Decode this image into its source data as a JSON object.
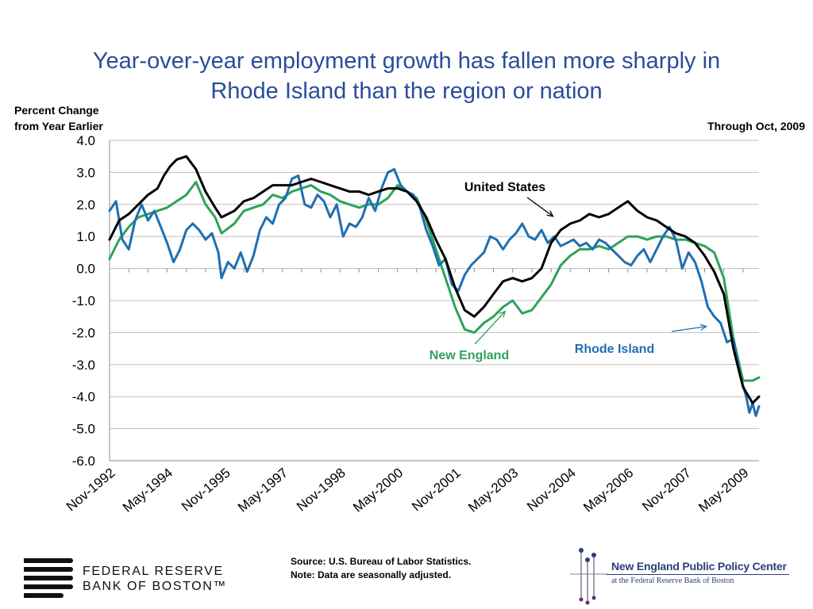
{
  "title": {
    "line1": "Year-over-year employment growth has fallen more sharply in",
    "line2": "Rhode Island than the region or nation"
  },
  "ylabel": {
    "line1": "Percent Change",
    "line2": "from Year Earlier"
  },
  "through_label": "Through Oct, 2009",
  "source": {
    "line1": "Source: U.S. Bureau of Labor Statistics.",
    "line2": "Note: Data are seasonally adjusted."
  },
  "logos": {
    "frb_line1": "FEDERAL RESERVE",
    "frb_line2": "BANK OF BOSTON™",
    "nepc_line1": "New England Public Policy Center",
    "nepc_line2": "at the Federal Reserve Bank of Boston"
  },
  "colors": {
    "title": "#2a4d9b",
    "united_states": "#000000",
    "new_england": "#2ea358",
    "rhode_island": "#1f6fb2",
    "grid": "#bfbfbf"
  },
  "chart_data": {
    "type": "line",
    "x_start": "Nov-1992",
    "x_end": "Oct-2009",
    "x_tick_labels": [
      "Nov-1992",
      "May-1994",
      "Nov-1995",
      "May-1997",
      "Nov-1998",
      "May-2000",
      "Nov-2001",
      "May-2003",
      "Nov-2004",
      "May-2006",
      "Nov-2007",
      "May-2009"
    ],
    "y_tick_labels": [
      "4.0",
      "3.0",
      "2.0",
      "1.0",
      "0.0",
      "-1.0",
      "-2.0",
      "-3.0",
      "-4.0",
      "-5.0",
      "-6.0"
    ],
    "ylim": [
      -6,
      4
    ],
    "grid": true,
    "series": [
      {
        "name": "United States",
        "color": "#000000",
        "points": [
          [
            "Nov-1992",
            0.9
          ],
          [
            "Feb-1993",
            1.5
          ],
          [
            "May-1993",
            1.7
          ],
          [
            "Aug-1993",
            2.0
          ],
          [
            "Nov-1993",
            2.3
          ],
          [
            "Feb-1994",
            2.5
          ],
          [
            "Apr-1994",
            2.9
          ],
          [
            "Jun-1994",
            3.2
          ],
          [
            "Aug-1994",
            3.4
          ],
          [
            "Nov-1994",
            3.5
          ],
          [
            "Feb-1995",
            3.1
          ],
          [
            "May-1995",
            2.4
          ],
          [
            "Aug-1995",
            1.9
          ],
          [
            "Oct-1995",
            1.6
          ],
          [
            "Feb-1996",
            1.8
          ],
          [
            "May-1996",
            2.1
          ],
          [
            "Aug-1996",
            2.2
          ],
          [
            "Nov-1996",
            2.4
          ],
          [
            "Feb-1997",
            2.6
          ],
          [
            "May-1997",
            2.6
          ],
          [
            "Aug-1997",
            2.6
          ],
          [
            "Nov-1997",
            2.7
          ],
          [
            "Feb-1998",
            2.8
          ],
          [
            "May-1998",
            2.7
          ],
          [
            "Aug-1998",
            2.6
          ],
          [
            "Nov-1998",
            2.5
          ],
          [
            "Feb-1999",
            2.4
          ],
          [
            "May-1999",
            2.4
          ],
          [
            "Aug-1999",
            2.3
          ],
          [
            "Nov-1999",
            2.4
          ],
          [
            "Feb-2000",
            2.5
          ],
          [
            "May-2000",
            2.5
          ],
          [
            "Aug-2000",
            2.4
          ],
          [
            "Nov-2000",
            2.1
          ],
          [
            "Feb-2001",
            1.6
          ],
          [
            "May-2001",
            0.9
          ],
          [
            "Aug-2001",
            0.3
          ],
          [
            "Nov-2001",
            -0.6
          ],
          [
            "Feb-2002",
            -1.3
          ],
          [
            "May-2002",
            -1.5
          ],
          [
            "Aug-2002",
            -1.2
          ],
          [
            "Nov-2002",
            -0.8
          ],
          [
            "Feb-2003",
            -0.4
          ],
          [
            "May-2003",
            -0.3
          ],
          [
            "Aug-2003",
            -0.4
          ],
          [
            "Nov-2003",
            -0.3
          ],
          [
            "Feb-2004",
            0.0
          ],
          [
            "May-2004",
            0.8
          ],
          [
            "Aug-2004",
            1.2
          ],
          [
            "Nov-2004",
            1.4
          ],
          [
            "Feb-2005",
            1.5
          ],
          [
            "May-2005",
            1.7
          ],
          [
            "Aug-2005",
            1.6
          ],
          [
            "Nov-2005",
            1.7
          ],
          [
            "Feb-2006",
            1.9
          ],
          [
            "May-2006",
            2.1
          ],
          [
            "Aug-2006",
            1.8
          ],
          [
            "Nov-2006",
            1.6
          ],
          [
            "Feb-2007",
            1.5
          ],
          [
            "May-2007",
            1.3
          ],
          [
            "Aug-2007",
            1.1
          ],
          [
            "Nov-2007",
            1.0
          ],
          [
            "Feb-2008",
            0.8
          ],
          [
            "May-2008",
            0.4
          ],
          [
            "Aug-2008",
            -0.1
          ],
          [
            "Nov-2008",
            -0.8
          ],
          [
            "Feb-2009",
            -2.5
          ],
          [
            "May-2009",
            -3.7
          ],
          [
            "Aug-2009",
            -4.2
          ],
          [
            "Oct-2009",
            -4.0
          ]
        ]
      },
      {
        "name": "New England",
        "color": "#2ea358",
        "points": [
          [
            "Nov-1992",
            0.3
          ],
          [
            "Feb-1993",
            0.9
          ],
          [
            "May-1993",
            1.3
          ],
          [
            "Aug-1993",
            1.6
          ],
          [
            "Nov-1993",
            1.7
          ],
          [
            "Feb-1994",
            1.8
          ],
          [
            "May-1994",
            1.9
          ],
          [
            "Aug-1994",
            2.1
          ],
          [
            "Nov-1994",
            2.3
          ],
          [
            "Feb-1995",
            2.7
          ],
          [
            "May-1995",
            2.0
          ],
          [
            "Aug-1995",
            1.6
          ],
          [
            "Oct-1995",
            1.1
          ],
          [
            "Feb-1996",
            1.4
          ],
          [
            "May-1996",
            1.8
          ],
          [
            "Aug-1996",
            1.9
          ],
          [
            "Nov-1996",
            2.0
          ],
          [
            "Feb-1997",
            2.3
          ],
          [
            "May-1997",
            2.2
          ],
          [
            "Aug-1997",
            2.4
          ],
          [
            "Nov-1997",
            2.5
          ],
          [
            "Feb-1998",
            2.6
          ],
          [
            "May-1998",
            2.4
          ],
          [
            "Aug-1998",
            2.3
          ],
          [
            "Nov-1998",
            2.1
          ],
          [
            "Feb-1999",
            2.0
          ],
          [
            "May-1999",
            1.9
          ],
          [
            "Aug-1999",
            2.0
          ],
          [
            "Nov-1999",
            2.0
          ],
          [
            "Feb-2000",
            2.2
          ],
          [
            "May-2000",
            2.6
          ],
          [
            "Aug-2000",
            2.4
          ],
          [
            "Nov-2000",
            2.2
          ],
          [
            "Feb-2001",
            1.5
          ],
          [
            "May-2001",
            0.6
          ],
          [
            "Aug-2001",
            -0.3
          ],
          [
            "Nov-2001",
            -1.2
          ],
          [
            "Feb-2002",
            -1.9
          ],
          [
            "May-2002",
            -2.0
          ],
          [
            "Aug-2002",
            -1.7
          ],
          [
            "Nov-2002",
            -1.5
          ],
          [
            "Feb-2003",
            -1.2
          ],
          [
            "May-2003",
            -1.0
          ],
          [
            "Aug-2003",
            -1.4
          ],
          [
            "Nov-2003",
            -1.3
          ],
          [
            "Feb-2004",
            -0.9
          ],
          [
            "May-2004",
            -0.5
          ],
          [
            "Aug-2004",
            0.1
          ],
          [
            "Nov-2004",
            0.4
          ],
          [
            "Feb-2005",
            0.6
          ],
          [
            "May-2005",
            0.6
          ],
          [
            "Aug-2005",
            0.7
          ],
          [
            "Nov-2005",
            0.6
          ],
          [
            "Feb-2006",
            0.8
          ],
          [
            "May-2006",
            1.0
          ],
          [
            "Aug-2006",
            1.0
          ],
          [
            "Nov-2006",
            0.9
          ],
          [
            "Feb-2007",
            1.0
          ],
          [
            "May-2007",
            1.0
          ],
          [
            "Aug-2007",
            0.9
          ],
          [
            "Nov-2007",
            0.9
          ],
          [
            "Feb-2008",
            0.8
          ],
          [
            "May-2008",
            0.7
          ],
          [
            "Aug-2008",
            0.5
          ],
          [
            "Nov-2008",
            -0.3
          ],
          [
            "Feb-2009",
            -2.2
          ],
          [
            "May-2009",
            -3.5
          ],
          [
            "Aug-2009",
            -3.5
          ],
          [
            "Oct-2009",
            -3.4
          ]
        ]
      },
      {
        "name": "Rhode Island",
        "color": "#1f6fb2",
        "points": [
          [
            "Nov-1992",
            1.8
          ],
          [
            "Jan-1993",
            2.1
          ],
          [
            "Mar-1993",
            0.9
          ],
          [
            "May-1993",
            0.6
          ],
          [
            "Jul-1993",
            1.5
          ],
          [
            "Sep-1993",
            2.0
          ],
          [
            "Nov-1993",
            1.5
          ],
          [
            "Jan-1994",
            1.8
          ],
          [
            "Mar-1994",
            1.3
          ],
          [
            "May-1994",
            0.8
          ],
          [
            "Jul-1994",
            0.2
          ],
          [
            "Sep-1994",
            0.6
          ],
          [
            "Nov-1994",
            1.2
          ],
          [
            "Jan-1995",
            1.4
          ],
          [
            "Mar-1995",
            1.2
          ],
          [
            "May-1995",
            0.9
          ],
          [
            "Jul-1995",
            1.1
          ],
          [
            "Sep-1995",
            0.5
          ],
          [
            "Oct-1995",
            -0.3
          ],
          [
            "Dec-1995",
            0.2
          ],
          [
            "Feb-1996",
            0.0
          ],
          [
            "Apr-1996",
            0.5
          ],
          [
            "Jun-1996",
            -0.1
          ],
          [
            "Aug-1996",
            0.4
          ],
          [
            "Oct-1996",
            1.2
          ],
          [
            "Dec-1996",
            1.6
          ],
          [
            "Feb-1997",
            1.4
          ],
          [
            "Apr-1997",
            2.0
          ],
          [
            "Jun-1997",
            2.2
          ],
          [
            "Aug-1997",
            2.8
          ],
          [
            "Oct-1997",
            2.9
          ],
          [
            "Dec-1997",
            2.0
          ],
          [
            "Feb-1998",
            1.9
          ],
          [
            "Apr-1998",
            2.3
          ],
          [
            "Jun-1998",
            2.1
          ],
          [
            "Aug-1998",
            1.6
          ],
          [
            "Oct-1998",
            2.0
          ],
          [
            "Dec-1998",
            1.0
          ],
          [
            "Feb-1999",
            1.4
          ],
          [
            "Apr-1999",
            1.3
          ],
          [
            "Jun-1999",
            1.6
          ],
          [
            "Aug-1999",
            2.2
          ],
          [
            "Oct-1999",
            1.8
          ],
          [
            "Dec-1999",
            2.5
          ],
          [
            "Feb-2000",
            3.0
          ],
          [
            "Apr-2000",
            3.1
          ],
          [
            "Jun-2000",
            2.6
          ],
          [
            "Aug-2000",
            2.4
          ],
          [
            "Oct-2000",
            2.3
          ],
          [
            "Dec-2000",
            1.9
          ],
          [
            "Feb-2001",
            1.2
          ],
          [
            "Apr-2001",
            0.7
          ],
          [
            "Jun-2001",
            0.1
          ],
          [
            "Aug-2001",
            0.3
          ],
          [
            "Oct-2001",
            -0.5
          ],
          [
            "Dec-2001",
            -0.7
          ],
          [
            "Feb-2002",
            -0.2
          ],
          [
            "Apr-2002",
            0.1
          ],
          [
            "Jun-2002",
            0.3
          ],
          [
            "Aug-2002",
            0.5
          ],
          [
            "Oct-2002",
            1.0
          ],
          [
            "Dec-2002",
            0.9
          ],
          [
            "Feb-2003",
            0.6
          ],
          [
            "Apr-2003",
            0.9
          ],
          [
            "Jun-2003",
            1.1
          ],
          [
            "Aug-2003",
            1.4
          ],
          [
            "Oct-2003",
            1.0
          ],
          [
            "Dec-2003",
            0.9
          ],
          [
            "Feb-2004",
            1.2
          ],
          [
            "Apr-2004",
            0.8
          ],
          [
            "Jun-2004",
            1.0
          ],
          [
            "Aug-2004",
            0.7
          ],
          [
            "Oct-2004",
            0.8
          ],
          [
            "Dec-2004",
            0.9
          ],
          [
            "Feb-2005",
            0.7
          ],
          [
            "Apr-2005",
            0.8
          ],
          [
            "Jun-2005",
            0.6
          ],
          [
            "Aug-2005",
            0.9
          ],
          [
            "Oct-2005",
            0.8
          ],
          [
            "Dec-2005",
            0.6
          ],
          [
            "Feb-2006",
            0.4
          ],
          [
            "Apr-2006",
            0.2
          ],
          [
            "Jun-2006",
            0.1
          ],
          [
            "Aug-2006",
            0.4
          ],
          [
            "Oct-2006",
            0.6
          ],
          [
            "Dec-2006",
            0.2
          ],
          [
            "Feb-2007",
            0.6
          ],
          [
            "Apr-2007",
            1.0
          ],
          [
            "Jun-2007",
            1.3
          ],
          [
            "Aug-2007",
            0.9
          ],
          [
            "Oct-2007",
            0.0
          ],
          [
            "Dec-2007",
            0.5
          ],
          [
            "Feb-2008",
            0.2
          ],
          [
            "Apr-2008",
            -0.4
          ],
          [
            "Jun-2008",
            -1.2
          ],
          [
            "Aug-2008",
            -1.5
          ],
          [
            "Oct-2008",
            -1.7
          ],
          [
            "Dec-2008",
            -2.3
          ],
          [
            "Feb-2009",
            -2.2
          ],
          [
            "Apr-2009",
            -3.3
          ],
          [
            "Jun-2009",
            -4.0
          ],
          [
            "Jul-2009",
            -4.5
          ],
          [
            "Aug-2009",
            -4.2
          ],
          [
            "Sep-2009",
            -4.6
          ],
          [
            "Oct-2009",
            -4.3
          ]
        ]
      }
    ],
    "annotations": [
      {
        "text": "United States",
        "color": "#000000",
        "points_to": [
          "Jun-2004",
          1.6
        ]
      },
      {
        "text": "New England",
        "color": "#2ea358",
        "points_to": [
          "Mar-2003",
          -1.3
        ]
      },
      {
        "text": "Rhode Island",
        "color": "#1f6fb2",
        "points_to": [
          "Jun-2008",
          -1.8
        ]
      }
    ]
  }
}
